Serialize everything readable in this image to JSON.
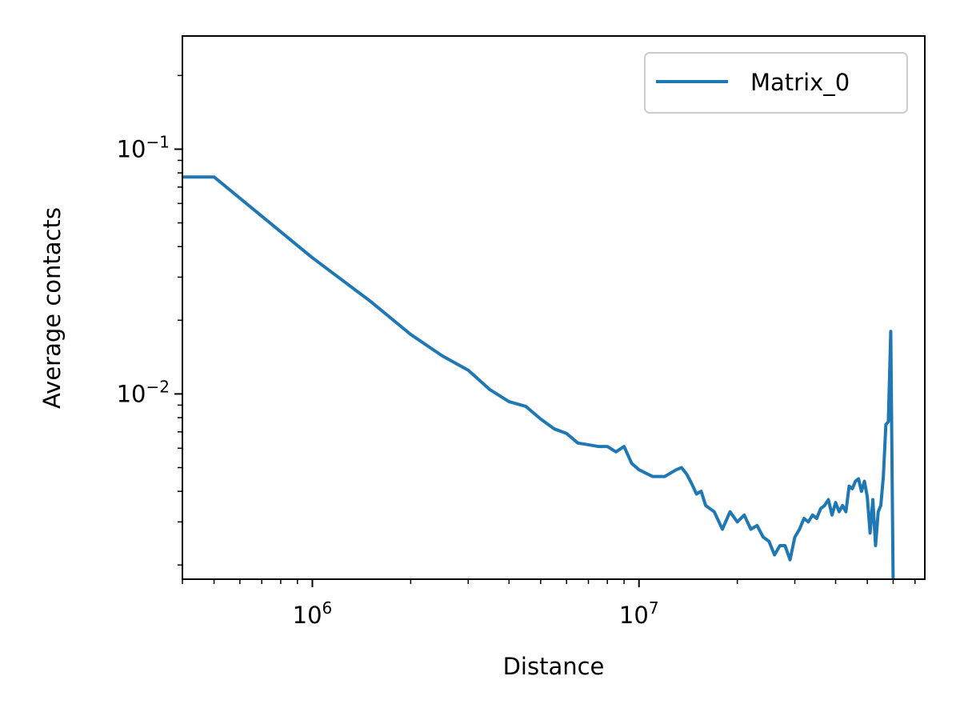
{
  "chart_data": {
    "type": "line",
    "xlabel": "Distance",
    "ylabel": "Average contacts",
    "xscale": "log",
    "yscale": "log",
    "xlim": [
      400000,
      75000000
    ],
    "ylim": [
      0.00175,
      0.29
    ],
    "x_ticks": [
      {
        "value": 1000000,
        "base": "10",
        "exp": "6"
      },
      {
        "value": 10000000,
        "base": "10",
        "exp": "7"
      }
    ],
    "y_ticks": [
      {
        "value": 0.1,
        "base": "10",
        "exp": "−1"
      },
      {
        "value": 0.01,
        "base": "10",
        "exp": "−2"
      }
    ],
    "grid": false,
    "legend_position": "top-right",
    "series": [
      {
        "name": "Matrix_0",
        "color": "#1f77b4",
        "x": [
          400000,
          500000,
          1000000,
          1500000,
          2000000,
          2500000,
          3000000,
          3500000,
          4000000,
          4500000,
          5000000,
          5500000,
          6000000,
          6500000,
          7000000,
          7500000,
          8000000,
          8500000,
          9000000,
          9500000,
          10000000,
          11000000,
          12000000,
          13000000,
          13500000,
          14000000,
          14500000,
          15000000,
          15500000,
          16000000,
          17000000,
          18000000,
          19000000,
          20000000,
          21000000,
          22000000,
          23000000,
          24000000,
          25000000,
          26000000,
          27000000,
          28000000,
          29000000,
          30000000,
          31000000,
          32000000,
          33000000,
          34000000,
          35000000,
          36000000,
          37000000,
          38000000,
          39000000,
          40000000,
          41000000,
          42000000,
          43000000,
          44000000,
          45000000,
          46000000,
          47000000,
          48000000,
          49000000,
          50000000,
          51000000,
          52000000,
          53000000,
          54000000,
          55000000,
          56000000,
          57000000,
          58000000,
          59000000,
          60000000
        ],
        "y": [
          0.077,
          0.077,
          0.036,
          0.024,
          0.0175,
          0.0143,
          0.0125,
          0.0104,
          0.0093,
          0.0089,
          0.0079,
          0.0072,
          0.0069,
          0.0063,
          0.0062,
          0.0061,
          0.0061,
          0.0058,
          0.0061,
          0.0052,
          0.0049,
          0.0046,
          0.0046,
          0.0049,
          0.005,
          0.0047,
          0.0043,
          0.0039,
          0.004,
          0.0035,
          0.0033,
          0.0028,
          0.0033,
          0.003,
          0.0032,
          0.0028,
          0.0029,
          0.0026,
          0.0025,
          0.0022,
          0.0024,
          0.0024,
          0.0021,
          0.0026,
          0.0028,
          0.0031,
          0.003,
          0.0032,
          0.0031,
          0.0034,
          0.0035,
          0.0037,
          0.0032,
          0.0036,
          0.0033,
          0.0035,
          0.0033,
          0.0042,
          0.0041,
          0.0044,
          0.0045,
          0.004,
          0.0044,
          0.0038,
          0.0027,
          0.0037,
          0.0024,
          0.0033,
          0.0035,
          0.0046,
          0.0075,
          0.0077,
          0.018,
          0.0017
        ]
      }
    ]
  }
}
